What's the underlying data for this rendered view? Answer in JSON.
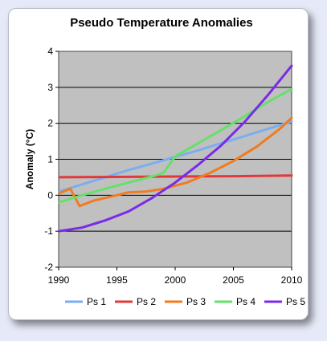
{
  "chart_data": {
    "type": "line",
    "title": "Pseudo Temperature Anomalies",
    "xlabel": "",
    "ylabel": "Anomaly (°C)",
    "xlim": [
      1990,
      2010
    ],
    "ylim": [
      -2,
      4
    ],
    "xticks": [
      1990,
      1995,
      2000,
      2005,
      2010
    ],
    "yticks": [
      -2,
      -1,
      0,
      1,
      2,
      3,
      4
    ],
    "grid": "horizontal",
    "legend": "bottom",
    "plot_background": "#c0c0c0",
    "series": [
      {
        "name": "Ps 1",
        "color": "#7aaef0",
        "x": [
          1990,
          1992,
          1994,
          1996,
          1998,
          2000,
          2002,
          2004,
          2006,
          2008,
          2010
        ],
        "y": [
          0.1,
          0.3,
          0.5,
          0.7,
          0.88,
          1.07,
          1.25,
          1.45,
          1.65,
          1.85,
          2.05
        ]
      },
      {
        "name": "Ps 2",
        "color": "#e2383a",
        "x": [
          1990,
          1995,
          2000,
          2005,
          2010
        ],
        "y": [
          0.5,
          0.51,
          0.52,
          0.53,
          0.55
        ]
      },
      {
        "name": "Ps 3",
        "color": "#f07c1e",
        "x": [
          1990,
          1991,
          1991.8,
          1993,
          1995,
          1996,
          1997.5,
          1999,
          2001,
          2003,
          2005,
          2007,
          2009,
          2010
        ],
        "y": [
          0.05,
          0.18,
          -0.3,
          -0.15,
          0.0,
          0.08,
          0.1,
          0.18,
          0.35,
          0.62,
          0.95,
          1.35,
          1.85,
          2.15
        ]
      },
      {
        "name": "Ps 4",
        "color": "#66e06a",
        "x": [
          1990,
          1992,
          1994,
          1996,
          1998,
          1999,
          2000,
          2002,
          2004,
          2006,
          2008,
          2010
        ],
        "y": [
          -0.2,
          0.0,
          0.18,
          0.35,
          0.52,
          0.62,
          1.08,
          1.45,
          1.82,
          2.2,
          2.6,
          2.95
        ]
      },
      {
        "name": "Ps 5",
        "color": "#7a2be8",
        "x": [
          1990,
          1992,
          1994,
          1996,
          1998,
          2000,
          2002,
          2004,
          2006,
          2008,
          2010
        ],
        "y": [
          -1.0,
          -0.9,
          -0.7,
          -0.45,
          -0.08,
          0.35,
          0.85,
          1.4,
          2.05,
          2.8,
          3.6
        ]
      }
    ]
  }
}
